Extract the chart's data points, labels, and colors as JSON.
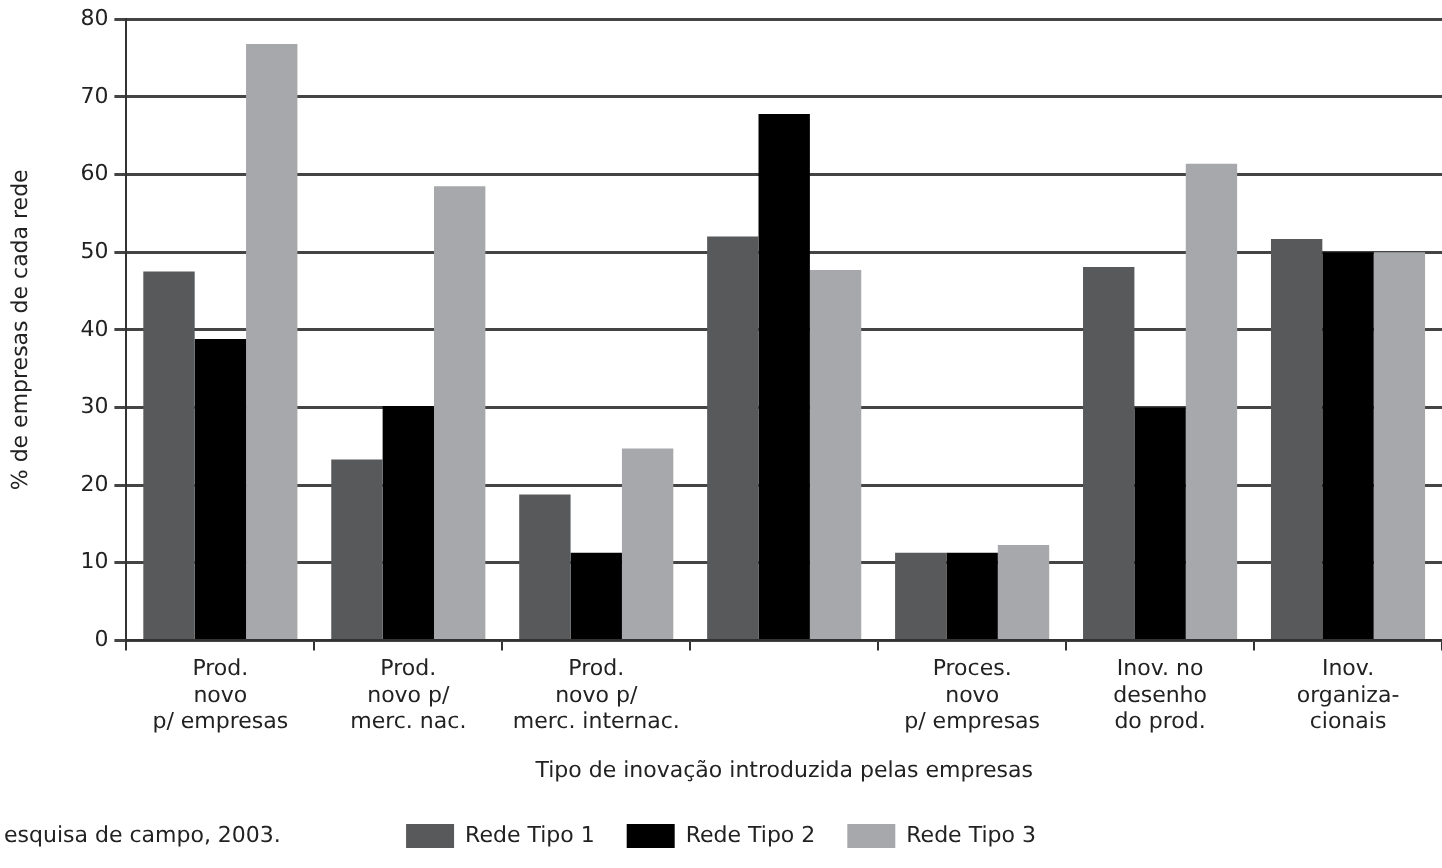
{
  "chart_data": {
    "type": "bar",
    "xlabel": "Tipo de inovação introduzida pelas empresas",
    "ylabel": "% de empresas de cada rede",
    "categories": [
      "Prod.\nnovo\np/ empresas",
      "Prod.\nnovo p/\nmerc. nac.",
      "Prod.\nnovo p/\nmerc. internac.",
      null,
      "Proces.\nnovo\np/ empresas",
      "Inov. no\ndesenho\ndo prod.",
      "Inov.\norganiza-\ncionais"
    ],
    "series": [
      {
        "name": "Rede Tipo 1",
        "color": "#58595b",
        "values": [
          47.5,
          23.3,
          18.8,
          52,
          11.3,
          48.1,
          51.7
        ]
      },
      {
        "name": "Rede Tipo 2",
        "color": "#000000",
        "values": [
          38.8,
          30.2,
          11.3,
          67.8,
          11.3,
          30,
          50
        ]
      },
      {
        "name": "Rede Tipo 3",
        "color": "#a7a8ab",
        "values": [
          76.8,
          58.5,
          24.7,
          47.7,
          12.3,
          61.4,
          50
        ]
      }
    ],
    "ylim": [
      0,
      80
    ],
    "yticks": [
      0,
      10,
      20,
      30,
      40,
      50,
      60,
      70,
      80
    ],
    "grid": "y",
    "legend": "bottom",
    "annotations": [
      "esquisa de campo, 2003."
    ]
  }
}
